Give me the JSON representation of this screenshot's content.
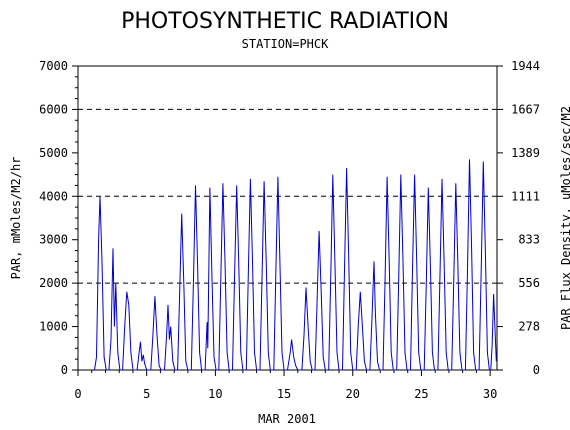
{
  "chart_data": {
    "type": "line",
    "title": "PHOTOSYNTHETIC RADIATION",
    "subtitle": "STATION=PHCK",
    "xlabel": "MAR 2001",
    "ylabel": "PAR, mMoles/M2/hr",
    "y2label": "PAR Flux Density, uMoles/sec/M2",
    "xlim": [
      0,
      30.5
    ],
    "ylim": [
      0,
      7000
    ],
    "x_ticks": [
      "0",
      "5",
      "10",
      "15",
      "20",
      "25",
      "30"
    ],
    "y_ticks": [
      "0",
      "1000",
      "2000",
      "3000",
      "4000",
      "5000",
      "6000",
      "7000"
    ],
    "y2_ticks": [
      "0",
      "278",
      "556",
      "833",
      "1111",
      "1389",
      "1667",
      "1944"
    ],
    "reference_lines": [
      2000,
      4000,
      6000
    ],
    "line_color": "#0000cc",
    "series": [
      {
        "values": [
          [
            1.2,
            0
          ],
          [
            1.35,
            300
          ],
          [
            1.5,
            3000
          ],
          [
            1.6,
            4000
          ],
          [
            1.75,
            2500
          ],
          [
            1.9,
            300
          ],
          [
            2.05,
            0
          ],
          [
            2.25,
            0
          ],
          [
            2.4,
            700
          ],
          [
            2.55,
            2800
          ],
          [
            2.65,
            1000
          ],
          [
            2.75,
            2000
          ],
          [
            2.9,
            400
          ],
          [
            3.05,
            0
          ],
          [
            3.25,
            0
          ],
          [
            3.4,
            1000
          ],
          [
            3.55,
            1800
          ],
          [
            3.7,
            1500
          ],
          [
            3.85,
            400
          ],
          [
            4.0,
            0
          ],
          [
            4.3,
            0
          ],
          [
            4.45,
            400
          ],
          [
            4.55,
            650
          ],
          [
            4.65,
            200
          ],
          [
            4.75,
            350
          ],
          [
            4.85,
            150
          ],
          [
            5.0,
            0
          ],
          [
            5.3,
            0
          ],
          [
            5.45,
            800
          ],
          [
            5.6,
            1700
          ],
          [
            5.75,
            800
          ],
          [
            5.9,
            100
          ],
          [
            6.05,
            0
          ],
          [
            6.3,
            0
          ],
          [
            6.45,
            800
          ],
          [
            6.55,
            1500
          ],
          [
            6.65,
            700
          ],
          [
            6.75,
            1000
          ],
          [
            6.9,
            200
          ],
          [
            7.05,
            0
          ],
          [
            7.25,
            0
          ],
          [
            7.4,
            1800
          ],
          [
            7.55,
            3600
          ],
          [
            7.7,
            2000
          ],
          [
            7.85,
            200
          ],
          [
            8.0,
            0
          ],
          [
            8.25,
            0
          ],
          [
            8.4,
            2000
          ],
          [
            8.55,
            4250
          ],
          [
            8.7,
            2500
          ],
          [
            8.85,
            400
          ],
          [
            9.0,
            0
          ],
          [
            9.25,
            0
          ],
          [
            9.4,
            1100
          ],
          [
            9.45,
            500
          ],
          [
            9.6,
            4200
          ],
          [
            9.75,
            2200
          ],
          [
            9.9,
            300
          ],
          [
            10.05,
            0
          ],
          [
            10.25,
            0
          ],
          [
            10.4,
            2200
          ],
          [
            10.55,
            4300
          ],
          [
            10.7,
            2500
          ],
          [
            10.85,
            400
          ],
          [
            11.0,
            0
          ],
          [
            11.25,
            0
          ],
          [
            11.4,
            2200
          ],
          [
            11.55,
            4250
          ],
          [
            11.7,
            2500
          ],
          [
            11.85,
            400
          ],
          [
            12.0,
            0
          ],
          [
            12.25,
            0
          ],
          [
            12.4,
            2200
          ],
          [
            12.55,
            4400
          ],
          [
            12.7,
            2500
          ],
          [
            12.85,
            400
          ],
          [
            13.0,
            0
          ],
          [
            13.25,
            0
          ],
          [
            13.4,
            2200
          ],
          [
            13.55,
            4350
          ],
          [
            13.7,
            2500
          ],
          [
            13.85,
            400
          ],
          [
            14.0,
            0
          ],
          [
            14.25,
            0
          ],
          [
            14.4,
            2200
          ],
          [
            14.55,
            4450
          ],
          [
            14.7,
            2500
          ],
          [
            14.85,
            400
          ],
          [
            15.0,
            0
          ],
          [
            15.25,
            0
          ],
          [
            15.45,
            400
          ],
          [
            15.55,
            700
          ],
          [
            15.7,
            300
          ],
          [
            15.85,
            100
          ],
          [
            16.0,
            0
          ],
          [
            16.3,
            0
          ],
          [
            16.45,
            800
          ],
          [
            16.6,
            1900
          ],
          [
            16.75,
            1000
          ],
          [
            16.9,
            200
          ],
          [
            17.05,
            0
          ],
          [
            17.25,
            0
          ],
          [
            17.4,
            1500
          ],
          [
            17.55,
            3200
          ],
          [
            17.7,
            1800
          ],
          [
            17.85,
            300
          ],
          [
            18.0,
            0
          ],
          [
            18.25,
            0
          ],
          [
            18.4,
            2200
          ],
          [
            18.55,
            4500
          ],
          [
            18.7,
            2500
          ],
          [
            18.85,
            400
          ],
          [
            19.0,
            0
          ],
          [
            19.25,
            0
          ],
          [
            19.4,
            2300
          ],
          [
            19.55,
            4650
          ],
          [
            19.7,
            2700
          ],
          [
            19.85,
            400
          ],
          [
            20.0,
            0
          ],
          [
            20.25,
            0
          ],
          [
            20.4,
            1000
          ],
          [
            20.55,
            1800
          ],
          [
            20.7,
            1000
          ],
          [
            20.85,
            200
          ],
          [
            21.0,
            0
          ],
          [
            21.25,
            0
          ],
          [
            21.4,
            1200
          ],
          [
            21.55,
            2500
          ],
          [
            21.65,
            1300
          ],
          [
            21.8,
            200
          ],
          [
            21.95,
            0
          ],
          [
            22.2,
            0
          ],
          [
            22.35,
            2000
          ],
          [
            22.5,
            4450
          ],
          [
            22.65,
            2500
          ],
          [
            22.8,
            400
          ],
          [
            22.95,
            0
          ],
          [
            23.2,
            0
          ],
          [
            23.35,
            2200
          ],
          [
            23.5,
            4500
          ],
          [
            23.65,
            2600
          ],
          [
            23.8,
            400
          ],
          [
            23.95,
            0
          ],
          [
            24.2,
            0
          ],
          [
            24.35,
            2300
          ],
          [
            24.5,
            4500
          ],
          [
            24.65,
            2600
          ],
          [
            24.8,
            400
          ],
          [
            24.95,
            0
          ],
          [
            25.2,
            0
          ],
          [
            25.35,
            2000
          ],
          [
            25.5,
            4200
          ],
          [
            25.65,
            2400
          ],
          [
            25.8,
            400
          ],
          [
            25.95,
            0
          ],
          [
            26.2,
            0
          ],
          [
            26.35,
            2200
          ],
          [
            26.5,
            4400
          ],
          [
            26.65,
            2500
          ],
          [
            26.8,
            400
          ],
          [
            26.95,
            0
          ],
          [
            27.2,
            0
          ],
          [
            27.35,
            2000
          ],
          [
            27.5,
            4300
          ],
          [
            27.65,
            2500
          ],
          [
            27.8,
            400
          ],
          [
            27.95,
            0
          ],
          [
            28.2,
            0
          ],
          [
            28.35,
            2300
          ],
          [
            28.5,
            4850
          ],
          [
            28.65,
            2800
          ],
          [
            28.8,
            400
          ],
          [
            28.95,
            0
          ],
          [
            29.2,
            0
          ],
          [
            29.35,
            2300
          ],
          [
            29.5,
            4800
          ],
          [
            29.65,
            2800
          ],
          [
            29.8,
            400
          ],
          [
            29.95,
            0
          ],
          [
            30.05,
            0
          ],
          [
            30.15,
            600
          ],
          [
            30.25,
            1750
          ],
          [
            30.35,
            1000
          ],
          [
            30.45,
            200
          ]
        ]
      }
    ]
  }
}
